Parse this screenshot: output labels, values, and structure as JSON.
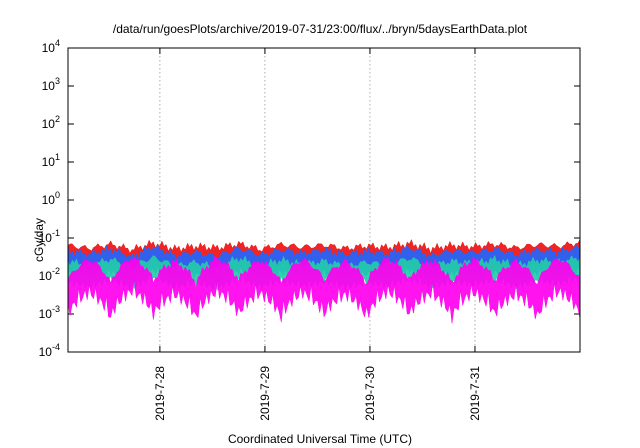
{
  "chart_data": {
    "type": "area",
    "title": "/data/run/goesPlots/archive/2019-07-31/23:00/flux/../bryn/5daysEarthData.plot",
    "xlabel": "Coordinated Universal Time (UTC)",
    "ylabel": "cGy/day",
    "yscale": "log",
    "ylim": [
      0.0001,
      10000
    ],
    "y_ticks": [
      {
        "base": "10",
        "exp": "-4"
      },
      {
        "base": "10",
        "exp": "-3"
      },
      {
        "base": "10",
        "exp": "-2"
      },
      {
        "base": "10",
        "exp": "-1"
      },
      {
        "base": "10",
        "exp": "0"
      },
      {
        "base": "10",
        "exp": "1"
      },
      {
        "base": "10",
        "exp": "2"
      },
      {
        "base": "10",
        "exp": "3"
      },
      {
        "base": "10",
        "exp": "4"
      }
    ],
    "x_range": [
      "2019-07-27 03:00",
      "2019-08-01 00:00"
    ],
    "x_ticks": [
      "2019-7-28",
      "2019-7-29",
      "2019-7-30",
      "2019-7-31"
    ],
    "grid": true,
    "series": [
      {
        "color": "#ee1111",
        "values": [
          0.042,
          0.035,
          0.045,
          0.032,
          0.048,
          0.034,
          0.04,
          0.036,
          0.046,
          0.033,
          0.044,
          0.038,
          0.043,
          0.035,
          0.041,
          0.037,
          0.047,
          0.034,
          0.042,
          0.039,
          0.045,
          0.036,
          0.044,
          0.04,
          0.05
        ]
      },
      {
        "color": "#2266ff",
        "values": [
          0.03,
          0.024,
          0.033,
          0.02,
          0.038,
          0.022,
          0.028,
          0.021,
          0.035,
          0.023,
          0.032,
          0.026,
          0.031,
          0.024,
          0.029,
          0.025,
          0.036,
          0.022,
          0.03,
          0.027,
          0.033,
          0.024,
          0.031,
          0.028,
          0.037
        ]
      },
      {
        "color": "#22ccaa",
        "values": [
          0.016,
          0.012,
          0.018,
          0.011,
          0.02,
          0.012,
          0.015,
          0.011,
          0.019,
          0.012,
          0.017,
          0.013,
          0.016,
          0.012,
          0.015,
          0.013,
          0.019,
          0.012,
          0.016,
          0.014,
          0.018,
          0.012,
          0.017,
          0.015,
          0.02
        ]
      },
      {
        "color": "#ff00ee",
        "values": [
          0.005,
          0.018,
          0.004,
          0.02,
          0.005,
          0.016,
          0.004,
          0.019,
          0.005,
          0.017,
          0.004,
          0.018,
          0.005,
          0.016,
          0.004,
          0.019,
          0.005,
          0.017,
          0.004,
          0.018,
          0.005,
          0.016,
          0.004,
          0.019,
          0.005
        ]
      }
    ]
  }
}
